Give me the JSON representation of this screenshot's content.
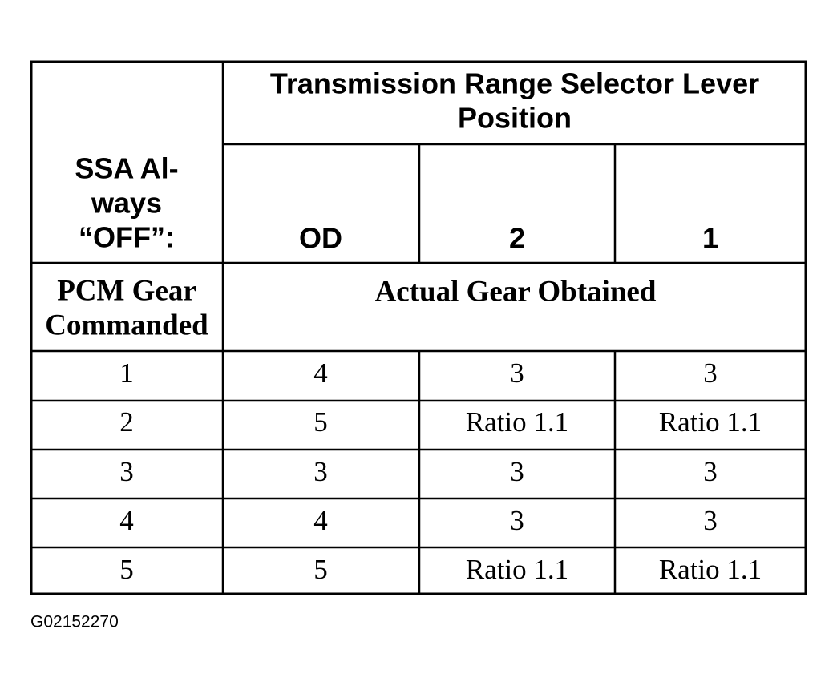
{
  "header": {
    "corner_label": [
      "SSA Al-",
      "ways",
      "“OFF”:"
    ],
    "title": [
      "Transmission Range Selector Lever",
      "Position"
    ],
    "columns": [
      "OD",
      "2",
      "1"
    ]
  },
  "subheader": {
    "row_label": [
      "PCM Gear",
      "Commanded"
    ],
    "group_label": "Actual Gear Obtained"
  },
  "table": {
    "rows": [
      [
        "1",
        "4",
        "3",
        "3"
      ],
      [
        "2",
        "5",
        "Ratio 1.1",
        "Ratio 1.1"
      ],
      [
        "3",
        "3",
        "3",
        "3"
      ],
      [
        "4",
        "4",
        "3",
        "3"
      ],
      [
        "5",
        "5",
        "Ratio 1.1",
        "Ratio 1.1"
      ]
    ]
  },
  "caption": "G02152270"
}
